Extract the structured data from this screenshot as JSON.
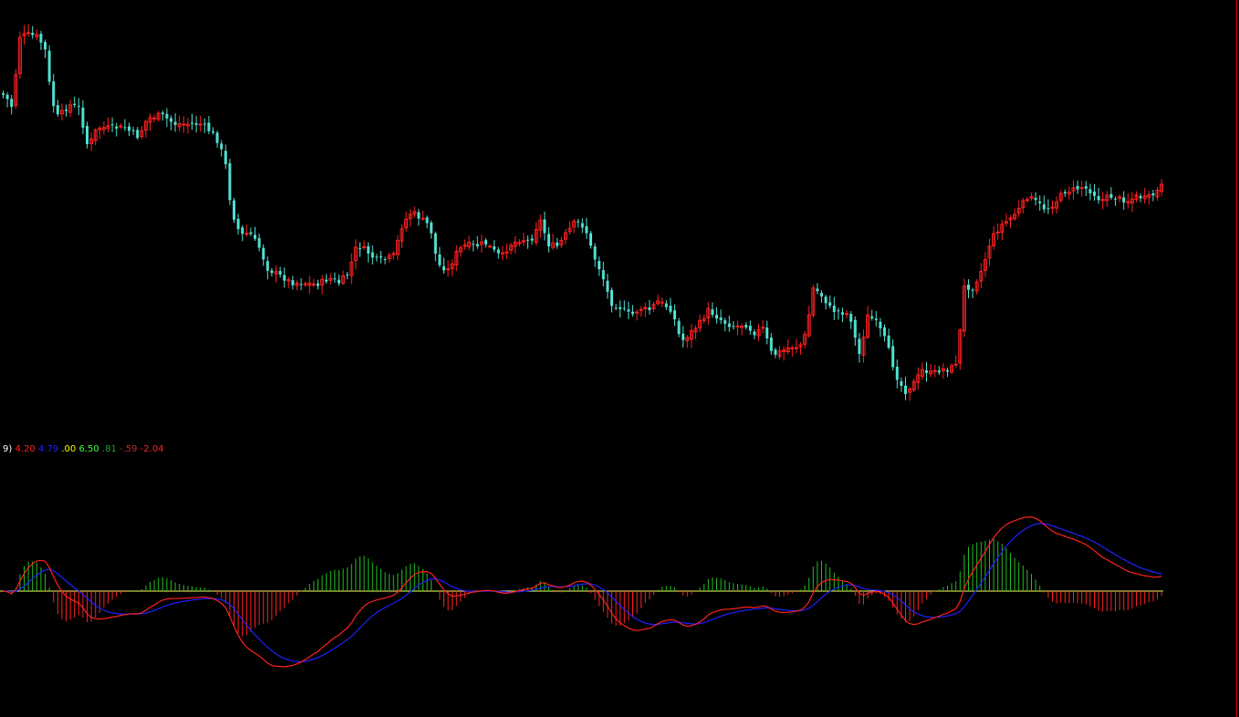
{
  "colors": {
    "background": "#000000",
    "candle_up": "#ff2020",
    "candle_down": "#4fe0d0",
    "macd_line": "#ff2020",
    "signal_line": "#2020ff",
    "hist_pos": "#20c020",
    "hist_neg": "#ff2020",
    "zero_line": "#ffff60",
    "right_border": "#cc0000"
  },
  "readout": [
    {
      "text": "9)",
      "color": "#ffffff"
    },
    {
      "text": "4.20",
      "color": "#ff2020"
    },
    {
      "text": "4.79",
      "color": "#2020ff"
    },
    {
      "text": ".00",
      "color": "#ffff00"
    },
    {
      "text": "6.50",
      "color": "#40ff40"
    },
    {
      "text": ".81",
      "color": "#20a020"
    },
    {
      "text": "-.59",
      "color": "#b03030"
    },
    {
      "text": "-2.04",
      "color": "#ff2020"
    }
  ],
  "chart_data": [
    {
      "type": "candlestick",
      "title": "",
      "description_series": [
        {
          "name": "",
          "close_path_anchors": [
            [
              0,
              102
            ],
            [
              6,
              108
            ],
            [
              12,
              118
            ],
            [
              20,
              40
            ],
            [
              30,
              38
            ],
            [
              40,
              40
            ],
            [
              48,
              55
            ],
            [
              55,
              110
            ],
            [
              62,
              128
            ],
            [
              75,
              115
            ],
            [
              85,
              118
            ],
            [
              95,
              162
            ],
            [
              105,
              140
            ],
            [
              120,
              140
            ],
            [
              135,
              140
            ],
            [
              150,
              150
            ],
            [
              160,
              130
            ],
            [
              175,
              126
            ],
            [
              190,
              136
            ],
            [
              205,
              136
            ],
            [
              220,
              136
            ],
            [
              235,
              150
            ],
            [
              245,
              175
            ],
            [
              252,
              230
            ],
            [
              262,
              258
            ],
            [
              272,
              255
            ],
            [
              282,
              270
            ],
            [
              292,
              295
            ],
            [
              305,
              302
            ],
            [
              318,
              310
            ],
            [
              330,
              310
            ],
            [
              345,
              312
            ],
            [
              360,
              305
            ],
            [
              370,
              310
            ],
            [
              380,
              300
            ],
            [
              390,
              268
            ],
            [
              400,
              275
            ],
            [
              410,
              285
            ],
            [
              420,
              285
            ],
            [
              430,
              280
            ],
            [
              440,
              245
            ],
            [
              450,
              232
            ],
            [
              460,
              240
            ],
            [
              470,
              248
            ],
            [
              478,
              290
            ],
            [
              490,
              296
            ],
            [
              500,
              275
            ],
            [
              510,
              268
            ],
            [
              520,
              270
            ],
            [
              530,
              266
            ],
            [
              540,
              275
            ],
            [
              548,
              282
            ],
            [
              558,
              268
            ],
            [
              570,
              262
            ],
            [
              580,
              265
            ],
            [
              590,
              240
            ],
            [
              600,
              268
            ],
            [
              610,
              270
            ],
            [
              620,
              255
            ],
            [
              630,
              242
            ],
            [
              640,
              250
            ],
            [
              648,
              278
            ],
            [
              658,
              300
            ],
            [
              668,
              332
            ],
            [
              680,
              338
            ],
            [
              690,
              346
            ],
            [
              700,
              338
            ],
            [
              710,
              340
            ],
            [
              720,
              330
            ],
            [
              735,
              340
            ],
            [
              745,
              375
            ],
            [
              755,
              365
            ],
            [
              765,
              355
            ],
            [
              775,
              340
            ],
            [
              785,
              348
            ],
            [
              795,
              355
            ],
            [
              805,
              358
            ],
            [
              815,
              355
            ],
            [
              825,
              365
            ],
            [
              835,
              360
            ],
            [
              845,
              390
            ],
            [
              855,
              385
            ],
            [
              865,
              380
            ],
            [
              875,
              380
            ],
            [
              882,
              365
            ],
            [
              890,
              315
            ],
            [
              900,
              325
            ],
            [
              910,
              340
            ],
            [
              920,
              342
            ],
            [
              930,
              345
            ],
            [
              940,
              390
            ],
            [
              950,
              345
            ],
            [
              960,
              355
            ],
            [
              970,
              375
            ],
            [
              980,
              410
            ],
            [
              990,
              430
            ],
            [
              1000,
              420
            ],
            [
              1010,
              405
            ],
            [
              1020,
              410
            ],
            [
              1030,
              405
            ],
            [
              1040,
              405
            ],
            [
              1048,
              395
            ],
            [
              1055,
              315
            ],
            [
              1065,
              315
            ],
            [
              1075,
              295
            ],
            [
              1085,
              262
            ],
            [
              1095,
              248
            ],
            [
              1105,
              240
            ],
            [
              1115,
              230
            ],
            [
              1125,
              215
            ],
            [
              1135,
              222
            ],
            [
              1145,
              230
            ],
            [
              1155,
              222
            ],
            [
              1165,
              210
            ],
            [
              1175,
              208
            ],
            [
              1185,
              205
            ],
            [
              1195,
              210
            ],
            [
              1205,
              220
            ],
            [
              1215,
              215
            ],
            [
              1225,
              218
            ],
            [
              1235,
              220
            ],
            [
              1245,
              215
            ],
            [
              1255,
              218
            ],
            [
              1265,
              212
            ],
            [
              1275,
              200
            ]
          ]
        }
      ]
    },
    {
      "type": "line",
      "title": "",
      "series": [
        {
          "name": "",
          "role": "macd"
        },
        {
          "name": "",
          "role": "signal"
        }
      ]
    }
  ]
}
